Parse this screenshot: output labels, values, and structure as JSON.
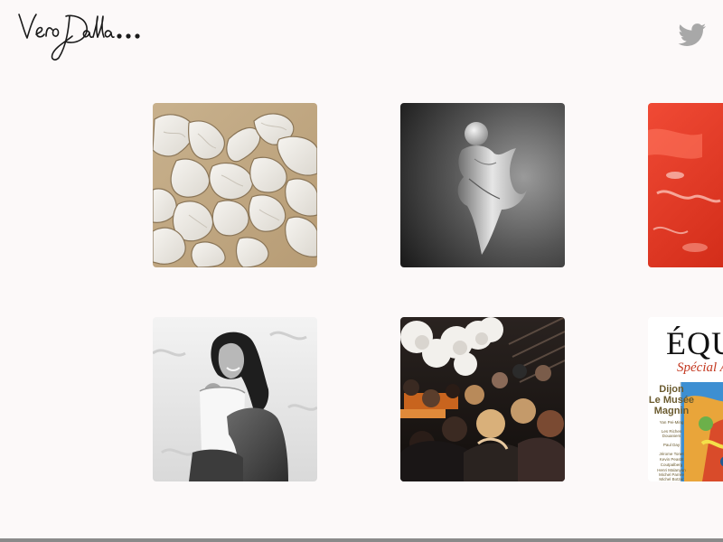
{
  "header": {
    "logo_text": "VeroDalla•••",
    "logo_icon": "signature-logo",
    "social_icon": "twitter-bird-icon"
  },
  "gallery": {
    "tiles": [
      {
        "name": "white-ceramic-puzzle-pieces"
      },
      {
        "name": "white-sculpture-on-dark"
      },
      {
        "name": "red-glossy-abstract"
      },
      {
        "name": "portrait-woman-laughing"
      },
      {
        "name": "event-crowd-with-paper-flowers"
      },
      {
        "name": "magazine-cover"
      }
    ],
    "magazine": {
      "title": "ÉQU",
      "subtitle": "Spécial Ar",
      "headline_1": "Dijon",
      "headline_2": "Le Musée",
      "headline_3": "Magnin",
      "lines": [
        "Yan Pei-Ming",
        "Les Riches",
        "Douaniers",
        "Paul Day",
        "Jérome Tonet",
        "Kevin Peastit",
        "Coutpalberg",
        "Henri Malanyan",
        "Michel Parrée",
        "Michel Botzer"
      ]
    }
  },
  "colors": {
    "background": "#fcf9f9",
    "logo_ink": "#1a1a1a",
    "twitter_icon": "#a8a8a8",
    "red_tile": "#e4301d"
  }
}
